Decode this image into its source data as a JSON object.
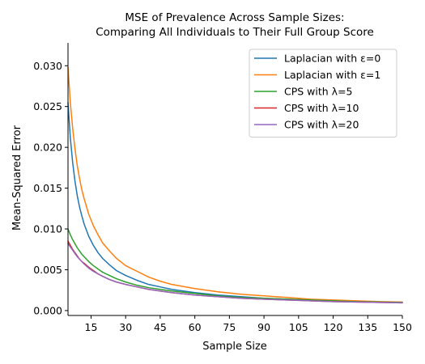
{
  "chart_data": {
    "type": "line",
    "title": "MSE of Prevalence Across Sample Sizes:",
    "subtitle": "Comparing All Individuals to Their Full Group Score",
    "xlabel": "Sample Size",
    "ylabel": "Mean-Squared Error",
    "xlim": [
      5,
      150
    ],
    "ylim": [
      -0.0006,
      0.0328
    ],
    "xticks": [
      15,
      30,
      45,
      60,
      75,
      90,
      105,
      120,
      135,
      150
    ],
    "yticks": [
      0.0,
      0.005,
      0.01,
      0.015,
      0.02,
      0.025,
      0.03
    ],
    "ytick_labels": [
      "0.000",
      "0.005",
      "0.010",
      "0.015",
      "0.020",
      "0.025",
      "0.030"
    ],
    "grid": false,
    "legend_position": "top-right",
    "x": [
      5,
      6,
      7,
      8,
      9,
      10,
      11,
      12,
      14,
      16,
      18,
      20,
      23,
      26,
      30,
      35,
      40,
      45,
      50,
      60,
      70,
      80,
      90,
      100,
      110,
      120,
      130,
      140,
      150
    ],
    "series": [
      {
        "name": "Laplacian with ε=0",
        "color": "#1f77b4",
        "values": [
          0.0255,
          0.0212,
          0.0182,
          0.0159,
          0.0141,
          0.0127,
          0.0116,
          0.0106,
          0.0091,
          0.008,
          0.0071,
          0.0064,
          0.0056,
          0.0049,
          0.0043,
          0.0037,
          0.0032,
          0.0029,
          0.0026,
          0.0022,
          0.0019,
          0.0017,
          0.0015,
          0.0014,
          0.0013,
          0.0012,
          0.0011,
          0.00105,
          0.001
        ]
      },
      {
        "name": "Laplacian with ε=1",
        "color": "#ff7f0e",
        "values": [
          0.0298,
          0.0255,
          0.0224,
          0.0199,
          0.0178,
          0.0162,
          0.0148,
          0.0137,
          0.0118,
          0.0104,
          0.0093,
          0.0083,
          0.0073,
          0.0064,
          0.0055,
          0.0048,
          0.0041,
          0.0036,
          0.0032,
          0.0027,
          0.0023,
          0.002,
          0.0018,
          0.0016,
          0.0014,
          0.0013,
          0.0012,
          0.0011,
          0.00105
        ]
      },
      {
        "name": "CPS with λ=5",
        "color": "#2ca02c",
        "values": [
          0.01,
          0.0093,
          0.0087,
          0.0082,
          0.0077,
          0.0073,
          0.0069,
          0.0066,
          0.006,
          0.0055,
          0.0051,
          0.0047,
          0.0043,
          0.0039,
          0.0035,
          0.0031,
          0.0028,
          0.0026,
          0.0024,
          0.0021,
          0.0018,
          0.0016,
          0.0015,
          0.0014,
          0.0013,
          0.0012,
          0.0011,
          0.00105,
          0.001
        ]
      },
      {
        "name": "CPS with λ=10",
        "color": "#d62728",
        "values": [
          0.0085,
          0.008,
          0.0075,
          0.0071,
          0.0067,
          0.0063,
          0.006,
          0.0058,
          0.0053,
          0.0049,
          0.0045,
          0.0042,
          0.0038,
          0.0035,
          0.0032,
          0.0029,
          0.0026,
          0.0024,
          0.0022,
          0.0019,
          0.0017,
          0.0015,
          0.0014,
          0.0013,
          0.0012,
          0.0011,
          0.00105,
          0.001,
          0.00095
        ]
      },
      {
        "name": "CPS with λ=20",
        "color": "#9467bd",
        "values": [
          0.0082,
          0.0078,
          0.0074,
          0.007,
          0.0066,
          0.0063,
          0.006,
          0.0057,
          0.0052,
          0.0048,
          0.0045,
          0.0042,
          0.0038,
          0.0035,
          0.0032,
          0.0029,
          0.0026,
          0.0024,
          0.0022,
          0.0019,
          0.0017,
          0.0015,
          0.0014,
          0.0013,
          0.0012,
          0.0011,
          0.00105,
          0.001,
          0.00095
        ]
      }
    ]
  }
}
